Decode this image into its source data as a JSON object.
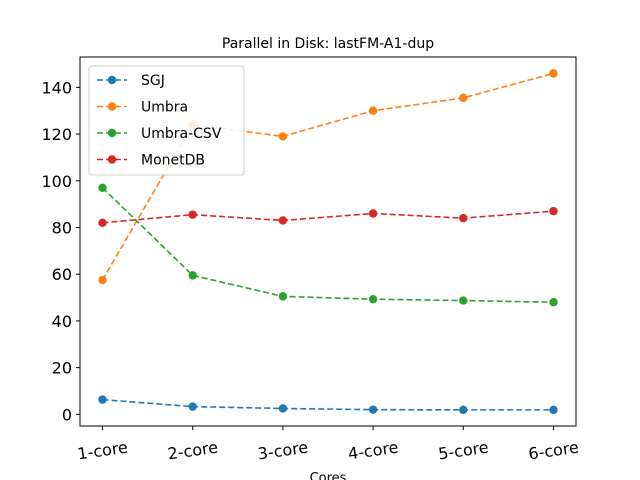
{
  "chart_data": {
    "type": "line",
    "title": "Parallel in Disk: lastFM-A1-dup",
    "xlabel": "Cores",
    "ylabel": "",
    "categories": [
      "1-core",
      "2-core",
      "3-core",
      "4-core",
      "5-core",
      "6-core"
    ],
    "ylim": [
      -5,
      153
    ],
    "yticks": [
      0,
      20,
      40,
      60,
      80,
      100,
      120,
      140
    ],
    "grid": false,
    "legend_position": "top-left",
    "line_style": "dashed",
    "marker": "circle",
    "series": [
      {
        "name": "SGJ",
        "color": "#1f77b4",
        "values": [
          6.3,
          3.3,
          2.5,
          2.0,
          1.9,
          1.9
        ]
      },
      {
        "name": "Umbra",
        "color": "#ff7f0e",
        "values": [
          57.5,
          124.0,
          119.0,
          130.0,
          135.5,
          146.0
        ]
      },
      {
        "name": "Umbra-CSV",
        "color": "#2ca02c",
        "values": [
          97.0,
          59.5,
          50.5,
          49.3,
          48.7,
          48.0
        ]
      },
      {
        "name": "MonetDB",
        "color": "#d62728",
        "values": [
          82.0,
          85.5,
          83.0,
          86.0,
          84.0,
          87.0
        ]
      }
    ]
  }
}
